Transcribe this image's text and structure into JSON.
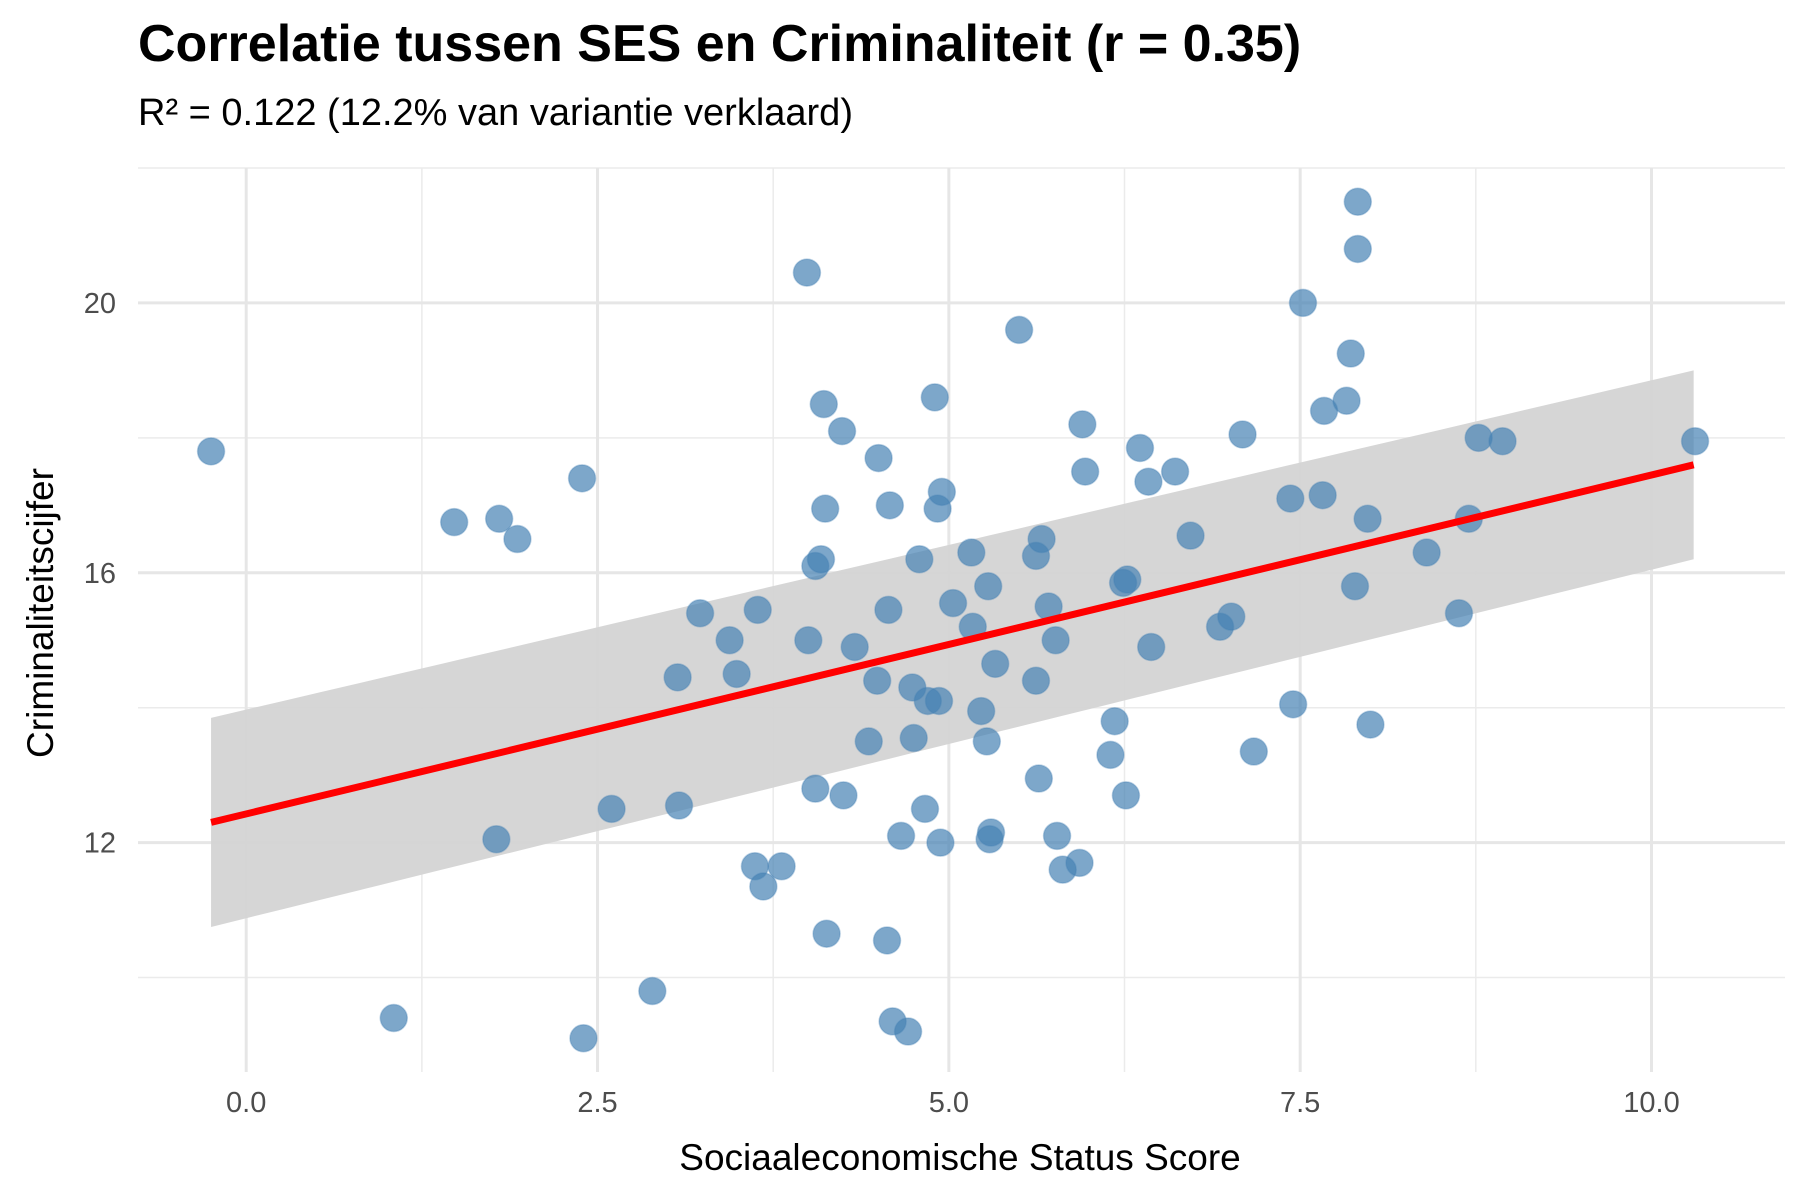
{
  "chart_data": {
    "type": "scatter",
    "title": "Correlatie tussen SES en Criminaliteit (r = 0.35)",
    "subtitle": "R² = 0.122 (12.2% van variantie verklaard)",
    "xlabel": "Sociaaleconomische Status Score",
    "ylabel": "Criminaliteitscijfer",
    "xlim": [
      -0.77,
      10.95
    ],
    "ylim": [
      8.6,
      22.0
    ],
    "x_ticks": [
      0.0,
      2.5,
      5.0,
      7.5,
      10.0
    ],
    "x_tick_labels": [
      "0.0",
      "2.5",
      "5.0",
      "7.5",
      "10.0"
    ],
    "y_ticks": [
      12,
      16,
      20
    ],
    "y_tick_labels": [
      "12",
      "16",
      "20"
    ],
    "grid": true,
    "point_color": "#4682b4",
    "line_color": "#ff0000",
    "band_color": "#d4d4d4",
    "trend_line": {
      "x": [
        -0.25,
        10.3
      ],
      "y": [
        12.3,
        17.6
      ]
    },
    "confidence_band": {
      "x": [
        -0.25,
        10.3
      ],
      "upper": [
        13.85,
        19.0
      ],
      "lower": [
        10.75,
        16.2
      ]
    },
    "points": {
      "x": [
        -0.25,
        1.05,
        1.48,
        1.78,
        1.8,
        1.93,
        2.39,
        2.4,
        2.6,
        2.89,
        3.07,
        3.08,
        3.23,
        3.44,
        3.49,
        3.62,
        3.64,
        3.68,
        3.81,
        3.99,
        4.0,
        4.05,
        4.05,
        4.09,
        4.11,
        4.12,
        4.13,
        4.24,
        4.25,
        4.33,
        4.43,
        4.49,
        4.5,
        4.56,
        4.57,
        4.58,
        4.6,
        4.66,
        4.71,
        4.74,
        4.75,
        4.79,
        4.83,
        4.85,
        4.9,
        4.92,
        4.93,
        4.94,
        4.95,
        5.03,
        5.16,
        5.17,
        5.23,
        5.27,
        5.28,
        5.29,
        5.3,
        5.33,
        5.5,
        5.62,
        5.62,
        5.64,
        5.66,
        5.71,
        5.76,
        5.77,
        5.81,
        5.93,
        5.95,
        5.97,
        6.15,
        6.18,
        6.24,
        6.26,
        6.27,
        6.36,
        6.42,
        6.44,
        6.61,
        6.72,
        6.93,
        7.01,
        7.09,
        7.17,
        7.43,
        7.45,
        7.52,
        7.66,
        7.67,
        7.83,
        7.86,
        7.89,
        7.91,
        7.91,
        7.98,
        8.0,
        8.4,
        8.63,
        8.7,
        8.77,
        8.94,
        10.31
      ],
      "y": [
        17.8,
        9.4,
        16.75,
        12.05,
        16.8,
        16.5,
        17.4,
        9.1,
        12.5,
        9.8,
        14.45,
        12.55,
        15.4,
        15.0,
        14.5,
        11.65,
        15.45,
        11.35,
        11.65,
        20.45,
        15.0,
        12.8,
        16.1,
        16.2,
        18.5,
        16.95,
        10.65,
        18.1,
        12.7,
        14.9,
        13.5,
        14.4,
        17.7,
        10.55,
        15.45,
        17.0,
        9.35,
        12.1,
        9.2,
        14.3,
        13.55,
        16.2,
        12.5,
        14.1,
        18.6,
        16.95,
        14.1,
        12.0,
        17.2,
        15.55,
        16.3,
        15.2,
        13.95,
        13.5,
        15.8,
        12.05,
        12.15,
        14.65,
        19.6,
        16.25,
        14.4,
        12.95,
        16.5,
        15.5,
        15.0,
        12.1,
        11.6,
        11.7,
        18.2,
        17.5,
        13.3,
        13.8,
        15.85,
        12.7,
        15.9,
        17.85,
        17.35,
        14.9,
        17.5,
        16.55,
        15.2,
        15.35,
        18.05,
        13.35,
        17.1,
        14.05,
        20.0,
        17.15,
        18.4,
        18.55,
        19.25,
        15.8,
        21.5,
        20.8,
        16.8,
        13.75,
        16.3,
        15.4,
        16.8,
        18.0,
        17.95,
        17.95
      ]
    }
  }
}
